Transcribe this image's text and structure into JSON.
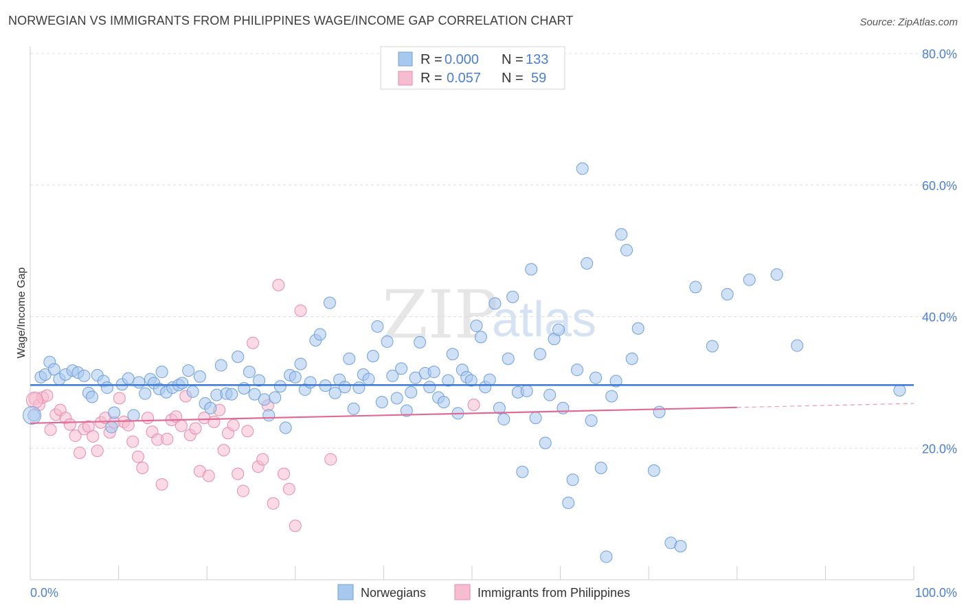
{
  "header": {
    "title": "NORWEGIAN VS IMMIGRANTS FROM PHILIPPINES WAGE/INCOME GAP CORRELATION CHART",
    "source": "Source: ZipAtlas.com"
  },
  "watermark": {
    "part1": "ZIP",
    "part2": "atlas"
  },
  "legend_top": [
    {
      "r_label": "R =",
      "r_value": "0.000",
      "n_label": "N =",
      "n_value": "133"
    },
    {
      "r_label": "R =",
      "r_value": "0.057",
      "n_label": "N =",
      "n_value": "59"
    }
  ],
  "colors": {
    "blue_fill": "#a9c8ee",
    "blue_stroke": "#6c9fdc",
    "blue_line": "#3a78d4",
    "pink_fill": "#f6bcd0",
    "pink_stroke": "#e88aab",
    "pink_line": "#e06a94",
    "grid": "#dddddd",
    "tick_text": "#4a7fd4"
  },
  "chart_data": {
    "type": "scatter",
    "title": "NORWEGIAN VS IMMIGRANTS FROM PHILIPPINES WAGE/INCOME GAP CORRELATION CHART",
    "xlabel": "",
    "ylabel": "Wage/Income Gap",
    "xlim": [
      0,
      100
    ],
    "ylim": [
      0,
      80
    ],
    "x_tick_labels": [
      "0.0%",
      "100.0%"
    ],
    "y_ticks": [
      20,
      40,
      60,
      80
    ],
    "y_tick_labels": [
      "20.0%",
      "40.0%",
      "60.0%",
      "80.0%"
    ],
    "grid": true,
    "legend": "bottom-center",
    "series": [
      {
        "name": "Norwegians",
        "r": 0.0,
        "n": 133,
        "trend": {
          "x": [
            0,
            100
          ],
          "y": [
            29.6,
            29.6
          ]
        },
        "points": [
          [
            0.4,
            25.0
          ],
          [
            1.2,
            30.8
          ],
          [
            1.7,
            31.2
          ],
          [
            2.2,
            33.1
          ],
          [
            2.7,
            32.0
          ],
          [
            3.3,
            30.5
          ],
          [
            4.0,
            31.2
          ],
          [
            4.8,
            31.8
          ],
          [
            5.4,
            31.5
          ],
          [
            6.1,
            31.0
          ],
          [
            6.6,
            28.4
          ],
          [
            7.0,
            27.8
          ],
          [
            7.6,
            31.1
          ],
          [
            8.3,
            30.2
          ],
          [
            8.7,
            29.2
          ],
          [
            9.5,
            25.4
          ],
          [
            9.2,
            23.2
          ],
          [
            10.4,
            29.7
          ],
          [
            11.1,
            30.6
          ],
          [
            11.7,
            25.0
          ],
          [
            12.3,
            30.0
          ],
          [
            13.0,
            28.3
          ],
          [
            13.6,
            30.5
          ],
          [
            14.0,
            29.9
          ],
          [
            14.6,
            29.0
          ],
          [
            14.9,
            31.6
          ],
          [
            15.4,
            28.5
          ],
          [
            16.1,
            29.2
          ],
          [
            16.8,
            29.6
          ],
          [
            17.2,
            29.9
          ],
          [
            17.9,
            31.8
          ],
          [
            18.4,
            28.6
          ],
          [
            19.2,
            30.9
          ],
          [
            19.8,
            26.8
          ],
          [
            20.4,
            26.1
          ],
          [
            21.1,
            28.1
          ],
          [
            21.6,
            32.6
          ],
          [
            22.2,
            28.3
          ],
          [
            22.8,
            28.2
          ],
          [
            23.5,
            33.9
          ],
          [
            24.2,
            29.1
          ],
          [
            24.8,
            31.6
          ],
          [
            25.4,
            28.2
          ],
          [
            25.9,
            30.3
          ],
          [
            26.5,
            27.4
          ],
          [
            27.0,
            25.0
          ],
          [
            27.7,
            27.7
          ],
          [
            28.3,
            29.4
          ],
          [
            28.9,
            23.1
          ],
          [
            29.4,
            31.1
          ],
          [
            30.0,
            30.8
          ],
          [
            30.6,
            32.8
          ],
          [
            31.1,
            28.9
          ],
          [
            31.7,
            30.0
          ],
          [
            32.3,
            36.4
          ],
          [
            32.8,
            37.3
          ],
          [
            33.4,
            29.5
          ],
          [
            33.9,
            42.1
          ],
          [
            34.5,
            28.4
          ],
          [
            35.0,
            30.4
          ],
          [
            35.6,
            29.3
          ],
          [
            36.1,
            33.6
          ],
          [
            36.6,
            26.0
          ],
          [
            37.2,
            29.2
          ],
          [
            37.7,
            31.2
          ],
          [
            38.3,
            30.5
          ],
          [
            38.8,
            34.0
          ],
          [
            39.3,
            38.5
          ],
          [
            39.8,
            27.0
          ],
          [
            40.4,
            36.2
          ],
          [
            41.0,
            31.0
          ],
          [
            41.5,
            27.6
          ],
          [
            42.0,
            32.1
          ],
          [
            42.6,
            25.7
          ],
          [
            43.1,
            28.5
          ],
          [
            43.6,
            30.7
          ],
          [
            44.1,
            36.1
          ],
          [
            44.7,
            31.4
          ],
          [
            45.2,
            29.3
          ],
          [
            45.7,
            31.6
          ],
          [
            46.2,
            27.7
          ],
          [
            46.8,
            27.0
          ],
          [
            47.3,
            30.3
          ],
          [
            47.8,
            34.3
          ],
          [
            48.4,
            25.3
          ],
          [
            48.9,
            31.9
          ],
          [
            49.4,
            30.8
          ],
          [
            49.9,
            30.3
          ],
          [
            50.5,
            38.6
          ],
          [
            51.0,
            36.9
          ],
          [
            51.5,
            29.3
          ],
          [
            52.0,
            30.4
          ],
          [
            52.6,
            42.0
          ],
          [
            53.1,
            26.1
          ],
          [
            53.6,
            24.4
          ],
          [
            54.1,
            33.6
          ],
          [
            54.6,
            43.0
          ],
          [
            55.2,
            28.5
          ],
          [
            55.7,
            16.4
          ],
          [
            56.2,
            28.7
          ],
          [
            56.7,
            47.2
          ],
          [
            57.2,
            24.6
          ],
          [
            57.7,
            34.3
          ],
          [
            58.3,
            20.8
          ],
          [
            58.8,
            28.1
          ],
          [
            59.3,
            36.6
          ],
          [
            59.8,
            38.0
          ],
          [
            60.3,
            26.1
          ],
          [
            60.9,
            11.7
          ],
          [
            61.4,
            15.2
          ],
          [
            61.9,
            31.9
          ],
          [
            62.5,
            62.5
          ],
          [
            63.0,
            48.1
          ],
          [
            63.5,
            24.2
          ],
          [
            64.0,
            30.7
          ],
          [
            64.6,
            17.0
          ],
          [
            65.2,
            3.5
          ],
          [
            65.8,
            27.9
          ],
          [
            66.3,
            30.2
          ],
          [
            66.9,
            52.5
          ],
          [
            67.5,
            50.1
          ],
          [
            68.1,
            33.6
          ],
          [
            68.8,
            38.2
          ],
          [
            70.6,
            16.6
          ],
          [
            71.2,
            25.5
          ],
          [
            72.5,
            5.6
          ],
          [
            73.6,
            5.1
          ],
          [
            75.3,
            44.5
          ],
          [
            77.2,
            35.5
          ],
          [
            78.9,
            43.4
          ],
          [
            81.4,
            45.6
          ],
          [
            84.5,
            46.4
          ],
          [
            86.8,
            35.6
          ],
          [
            98.4,
            28.8
          ]
        ]
      },
      {
        "name": "Immigrants from Philippines",
        "r": 0.057,
        "n": 59,
        "trend": {
          "x": [
            0,
            80
          ],
          "y": [
            23.8,
            26.2
          ]
        },
        "trend_dashed_to": {
          "x": 100,
          "y": 26.8
        },
        "points": [
          [
            0.5,
            27.5
          ],
          [
            1.0,
            26.6
          ],
          [
            1.4,
            27.7
          ],
          [
            1.9,
            28.0
          ],
          [
            2.3,
            22.8
          ],
          [
            2.9,
            25.1
          ],
          [
            3.4,
            25.8
          ],
          [
            4.0,
            24.6
          ],
          [
            4.5,
            23.6
          ],
          [
            5.1,
            21.9
          ],
          [
            5.6,
            19.3
          ],
          [
            6.1,
            22.9
          ],
          [
            6.6,
            23.3
          ],
          [
            7.1,
            21.8
          ],
          [
            7.6,
            19.6
          ],
          [
            8.0,
            23.9
          ],
          [
            8.5,
            24.6
          ],
          [
            9.0,
            22.4
          ],
          [
            9.5,
            23.9
          ],
          [
            10.1,
            27.6
          ],
          [
            10.6,
            24.0
          ],
          [
            11.1,
            23.5
          ],
          [
            11.6,
            21.0
          ],
          [
            12.2,
            18.7
          ],
          [
            12.7,
            17.0
          ],
          [
            13.3,
            24.6
          ],
          [
            13.8,
            22.5
          ],
          [
            14.4,
            21.3
          ],
          [
            14.9,
            14.5
          ],
          [
            15.5,
            21.4
          ],
          [
            16.0,
            24.3
          ],
          [
            16.5,
            24.8
          ],
          [
            17.1,
            23.4
          ],
          [
            17.6,
            27.9
          ],
          [
            18.1,
            22.0
          ],
          [
            18.7,
            23.0
          ],
          [
            19.2,
            16.5
          ],
          [
            19.7,
            24.6
          ],
          [
            20.2,
            15.8
          ],
          [
            20.8,
            24.0
          ],
          [
            21.4,
            25.8
          ],
          [
            21.9,
            19.7
          ],
          [
            22.4,
            22.3
          ],
          [
            23.0,
            23.5
          ],
          [
            23.5,
            16.1
          ],
          [
            24.1,
            13.5
          ],
          [
            24.6,
            22.6
          ],
          [
            25.2,
            36.0
          ],
          [
            25.8,
            17.2
          ],
          [
            26.3,
            18.3
          ],
          [
            26.9,
            26.5
          ],
          [
            27.5,
            11.6
          ],
          [
            28.1,
            44.8
          ],
          [
            28.7,
            16.1
          ],
          [
            29.3,
            13.8
          ],
          [
            30.0,
            8.2
          ],
          [
            30.6,
            40.9
          ],
          [
            34.0,
            18.3
          ],
          [
            50.2,
            26.6
          ]
        ]
      }
    ]
  },
  "bottom_legend": [
    {
      "label": "Norwegians"
    },
    {
      "label": "Immigrants from Philippines"
    }
  ]
}
